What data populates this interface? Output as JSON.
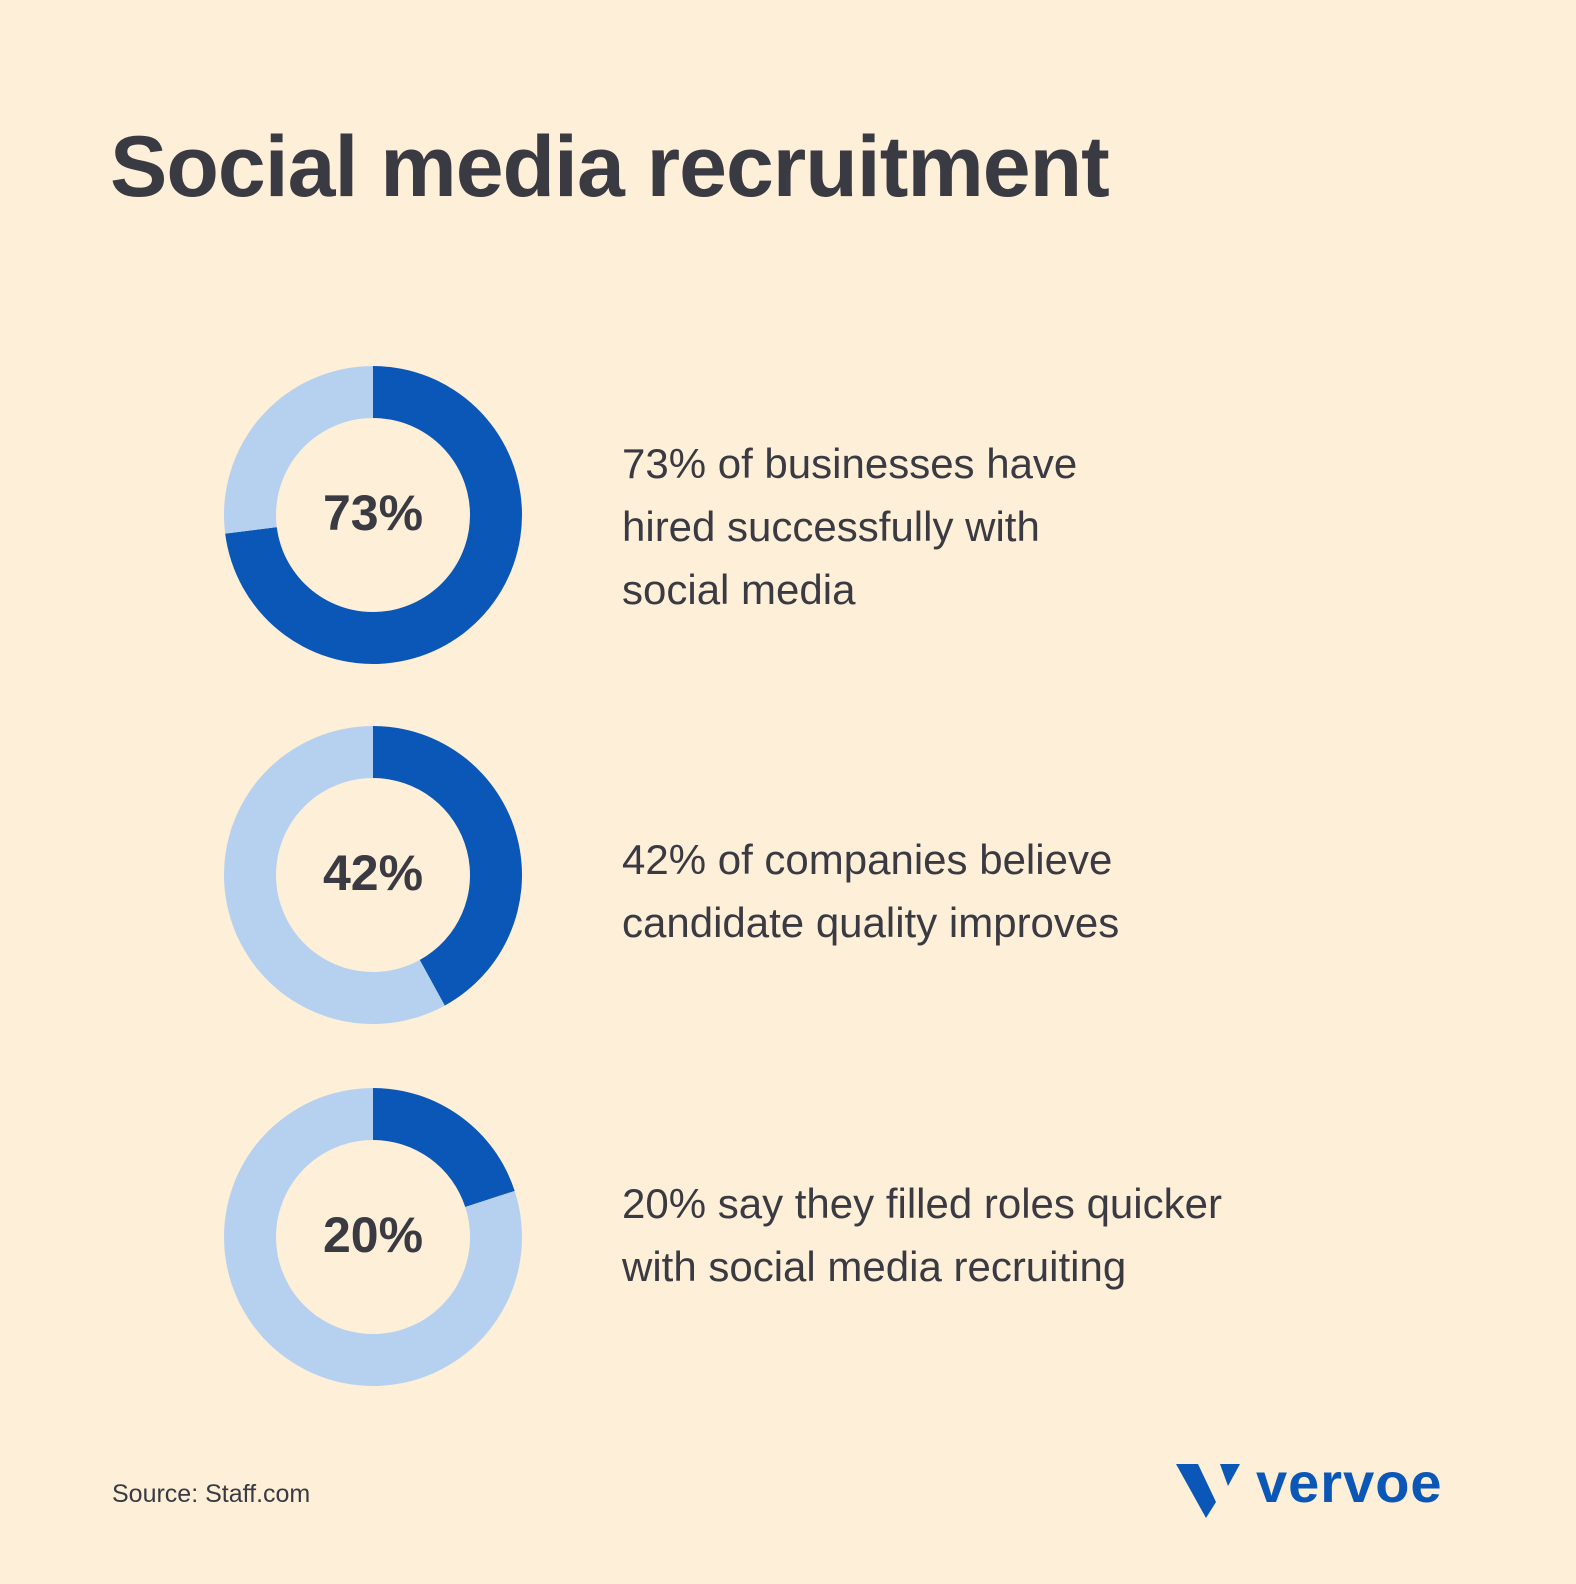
{
  "title": "Social media recruitment",
  "chart_data": [
    {
      "type": "donut",
      "values": [
        73,
        27
      ],
      "value_labels": [
        "73%",
        null
      ],
      "colors": [
        "#0b57b8",
        "#b6d1f0"
      ],
      "caption": [
        "73% of businesses have",
        "hired successfully with",
        "social media"
      ]
    },
    {
      "type": "donut",
      "values": [
        42,
        58
      ],
      "value_labels": [
        "42%",
        null
      ],
      "colors": [
        "#0b57b8",
        "#b6d1f0"
      ],
      "caption": [
        "42% of companies believe",
        "candidate quality improves"
      ]
    },
    {
      "type": "donut",
      "values": [
        20,
        80
      ],
      "value_labels": [
        "20%",
        null
      ],
      "colors": [
        "#0b57b8",
        "#b6d1f0"
      ],
      "caption": [
        "20% say they filled roles quicker",
        "with social media recruiting"
      ]
    }
  ],
  "source": "Source: Staff.com",
  "logo": "vervoe"
}
